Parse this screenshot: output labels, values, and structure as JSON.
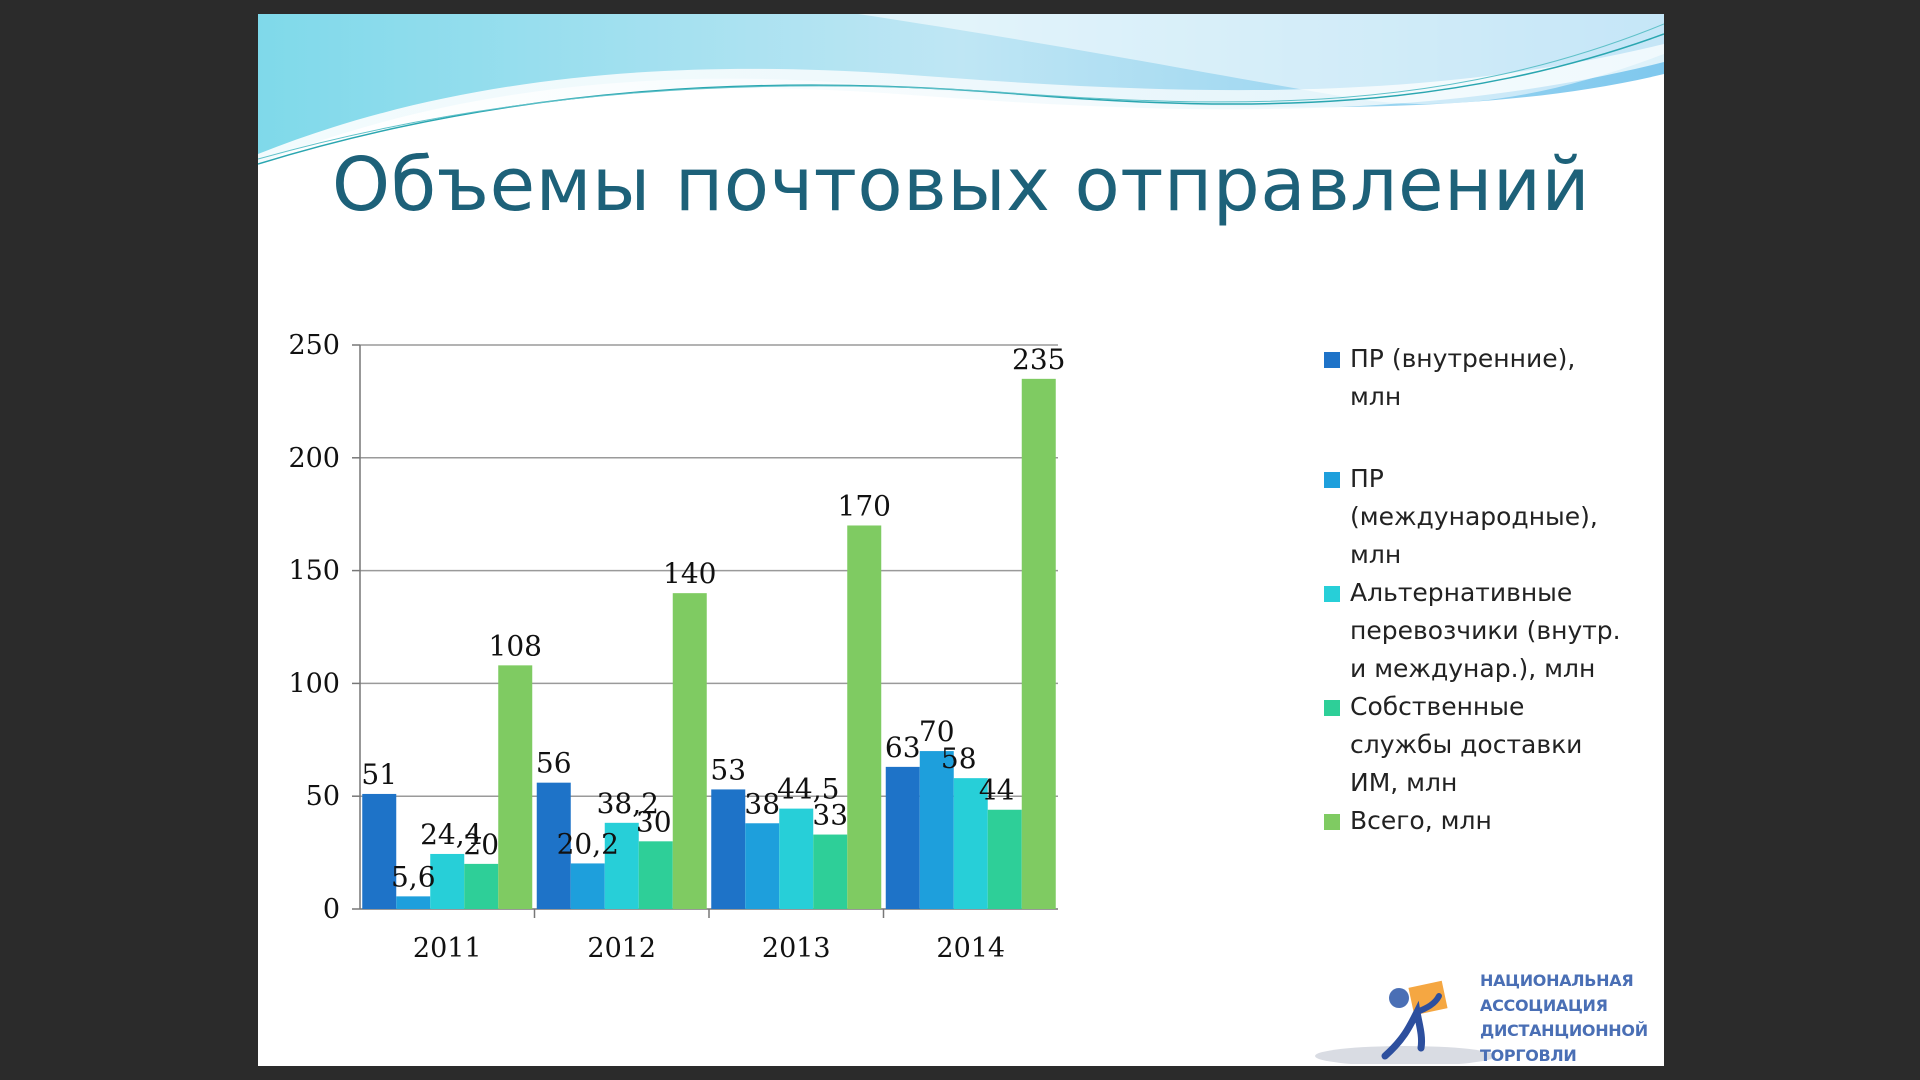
{
  "slide": {
    "title": "Объемы почтовых отправлений"
  },
  "colors": {
    "title": "#1d6179",
    "grid": "#9a9a9a"
  },
  "chart_data": {
    "type": "bar",
    "categories": [
      "2011",
      "2012",
      "2013",
      "2014"
    ],
    "ylim": [
      0,
      250
    ],
    "yticks": [
      0,
      50,
      100,
      150,
      200,
      250
    ],
    "grid": true,
    "legend_position": "right",
    "series": [
      {
        "name": "ПР (внутренние), млн",
        "color": "#1e73c8",
        "values": [
          51,
          56,
          53,
          63
        ],
        "labels": [
          "51",
          "56",
          "53",
          "63"
        ]
      },
      {
        "name": "ПР (международные), млн",
        "color": "#1e9fdc",
        "values": [
          5.6,
          20.2,
          38,
          70
        ],
        "labels": [
          "5,6",
          "20,2",
          "38",
          "70"
        ]
      },
      {
        "name": "Альтернативные перевозчики (внутр. и междунар.), млн",
        "color": "#27cfd8",
        "values": [
          24.4,
          38.2,
          44.5,
          58
        ],
        "labels": [
          "24,4",
          "38,2",
          "44,5",
          "58"
        ]
      },
      {
        "name": "Собственные службы доставки ИМ, млн",
        "color": "#2ecf98",
        "values": [
          20,
          30,
          33,
          44
        ],
        "labels": [
          "20",
          "30",
          "33",
          "44"
        ]
      },
      {
        "name": "Всего, млн",
        "color": "#7fcb62",
        "values": [
          108,
          140,
          170,
          235
        ],
        "labels": [
          "108",
          "140",
          "170",
          "235"
        ]
      }
    ]
  },
  "legend": {
    "items": [
      {
        "lines": [
          "ПР (внутренние),",
          "млн"
        ],
        "color": "#1e73c8"
      },
      {
        "lines": [
          "ПР",
          "(международные),",
          "млн"
        ],
        "color": "#1e9fdc"
      },
      {
        "lines": [
          "Альтернативные",
          "перевозчики (внутр.",
          "и междунар.), млн"
        ],
        "color": "#27cfd8"
      },
      {
        "lines": [
          "Собственные",
          "службы доставки",
          "ИМ, млн"
        ],
        "color": "#2ecf98"
      },
      {
        "lines": [
          "Всего, млн"
        ],
        "color": "#7fcb62"
      }
    ]
  },
  "logo": {
    "lines": [
      "НАЦИОНАЛЬНАЯ",
      "АССОЦИАЦИЯ",
      "ДИСТАНЦИОННОЙ",
      "ТОРГОВЛИ"
    ]
  }
}
